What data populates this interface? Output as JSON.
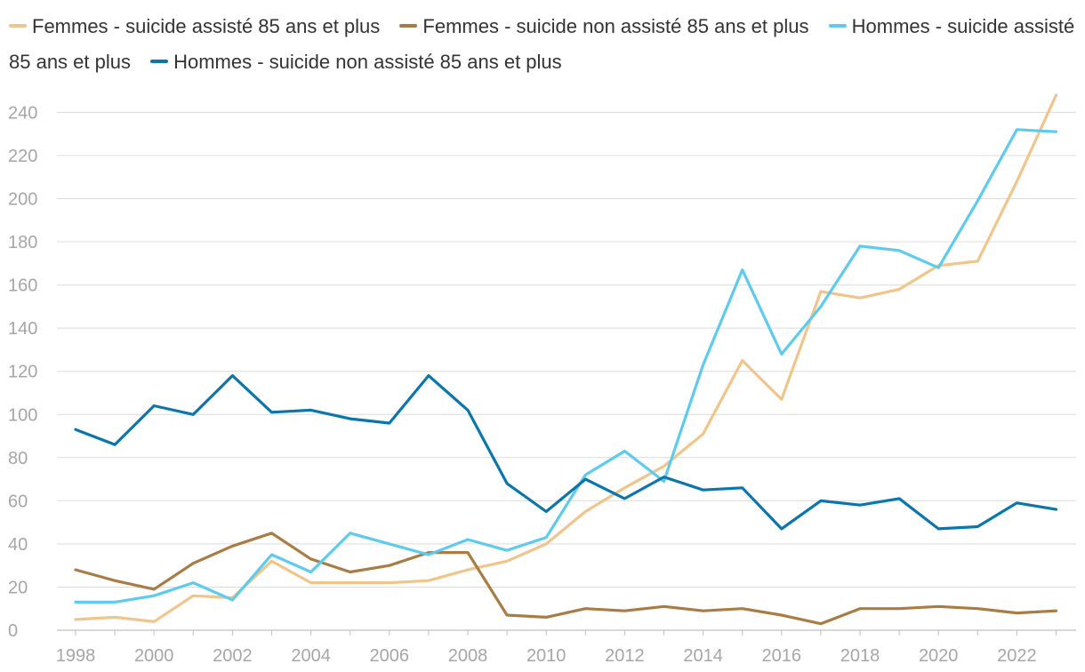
{
  "chart_data": {
    "type": "line",
    "title": "",
    "xlabel": "",
    "ylabel": "",
    "ylim": [
      0,
      250
    ],
    "y_ticks": [
      0,
      20,
      40,
      60,
      80,
      100,
      120,
      140,
      160,
      180,
      200,
      220,
      240
    ],
    "x_ticks": [
      1998,
      2000,
      2002,
      2004,
      2006,
      2008,
      2010,
      2012,
      2014,
      2016,
      2018,
      2020,
      2022
    ],
    "x": [
      1998,
      1999,
      2000,
      2001,
      2002,
      2003,
      2004,
      2005,
      2006,
      2007,
      2008,
      2009,
      2010,
      2011,
      2012,
      2013,
      2014,
      2015,
      2016,
      2017,
      2018,
      2019,
      2020,
      2021,
      2022,
      2023
    ],
    "grid": "horizontal",
    "legend_position": "top",
    "series": [
      {
        "name": "Femmes - suicide assisté 85 ans et plus",
        "color": "#f0c58b",
        "values": [
          5,
          6,
          4,
          16,
          15,
          32,
          22,
          22,
          22,
          23,
          28,
          32,
          40,
          55,
          66,
          76,
          91,
          125,
          107,
          157,
          154,
          158,
          169,
          171,
          208,
          248
        ]
      },
      {
        "name": "Femmes - suicide non assisté 85 ans et plus",
        "color": "#a97c45",
        "values": [
          28,
          23,
          19,
          31,
          39,
          45,
          33,
          27,
          30,
          36,
          36,
          7,
          6,
          10,
          9,
          11,
          9,
          10,
          7,
          3,
          10,
          10,
          11,
          10,
          8,
          9
        ]
      },
      {
        "name": "Hommes - suicide assisté 85 ans et plus",
        "color": "#5ecbee",
        "values": [
          13,
          13,
          16,
          22,
          14,
          35,
          27,
          45,
          40,
          35,
          42,
          37,
          43,
          72,
          83,
          69,
          123,
          167,
          128,
          150,
          178,
          176,
          168,
          199,
          232,
          231
        ]
      },
      {
        "name": "Hommes - suicide non assisté 85 ans et plus",
        "color": "#0b76ab",
        "values": [
          93,
          86,
          104,
          100,
          118,
          101,
          102,
          98,
          96,
          118,
          102,
          68,
          55,
          70,
          61,
          71,
          65,
          66,
          47,
          60,
          58,
          61,
          47,
          48,
          59,
          56
        ]
      }
    ]
  }
}
